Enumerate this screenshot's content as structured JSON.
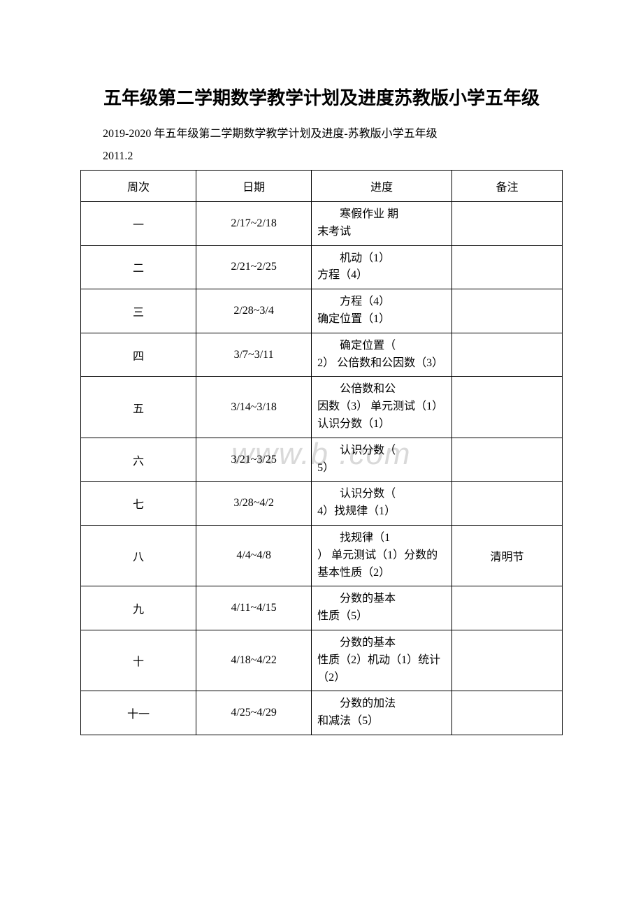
{
  "title": "五年级第二学期数学教学计划及进度苏教版小学五年级",
  "subtitle": "2019-2020 年五年级第二学期数学教学计划及进度-苏教版小学五年级",
  "dateLine": "2011.2",
  "watermark": "www.b    .com",
  "table": {
    "headers": {
      "week": "周次",
      "date": "日期",
      "progress": "进度",
      "note": "备注"
    },
    "colWidths": {
      "week": "23%",
      "date": "23%",
      "progress": "28%",
      "note": "22%"
    },
    "rows": [
      {
        "week": "一",
        "date": "2/17~2/18",
        "progFirst": "寒假作业 期",
        "progRest": "末考试",
        "note": ""
      },
      {
        "week": "二",
        "date": "2/21~2/25",
        "progFirst": "机动（1）",
        "progRest": "方程（4）",
        "note": ""
      },
      {
        "week": "三",
        "date": "2/28~3/4",
        "progFirst": "方程（4）",
        "progRest": "确定位置（1）",
        "note": ""
      },
      {
        "week": "四",
        "date": "3/7~3/11",
        "progFirst": "确定位置（",
        "progRest": "2） 公倍数和公因数（3）",
        "note": ""
      },
      {
        "week": "五",
        "date": "3/14~3/18",
        "progFirst": "公倍数和公",
        "progRest": "因数（3） 单元测试（1） 认识分数（1）",
        "note": ""
      },
      {
        "week": "六",
        "date": "3/21~3/25",
        "progFirst": "认识分数（",
        "progRest": "5）",
        "note": ""
      },
      {
        "week": "七",
        "date": "3/28~4/2",
        "progFirst": "认识分数（",
        "progRest": "4）找规律（1）",
        "note": ""
      },
      {
        "week": "八",
        "date": "4/4~4/8",
        "progFirst": "找规律（1",
        "progRest": "）   单元测试（1）分数的基本性质（2）",
        "note": "清明节"
      },
      {
        "week": "九",
        "date": "4/11~4/15",
        "progFirst": "分数的基本",
        "progRest": "性质（5）",
        "note": ""
      },
      {
        "week": "十",
        "date": "4/18~4/22",
        "progFirst": "分数的基本",
        "progRest": "性质（2）机动（1）统计（2）",
        "note": ""
      },
      {
        "week": "十一",
        "date": "4/25~4/29",
        "progFirst": "分数的加法",
        "progRest": "和减法（5）",
        "note": ""
      }
    ]
  },
  "styling": {
    "background_color": "#ffffff",
    "text_color": "#000000",
    "border_color": "#000000",
    "watermark_color": "#d9d9d9",
    "title_fontsize": 26,
    "body_fontsize": 16,
    "watermark_fontsize": 44,
    "font_family": "SimSun"
  }
}
